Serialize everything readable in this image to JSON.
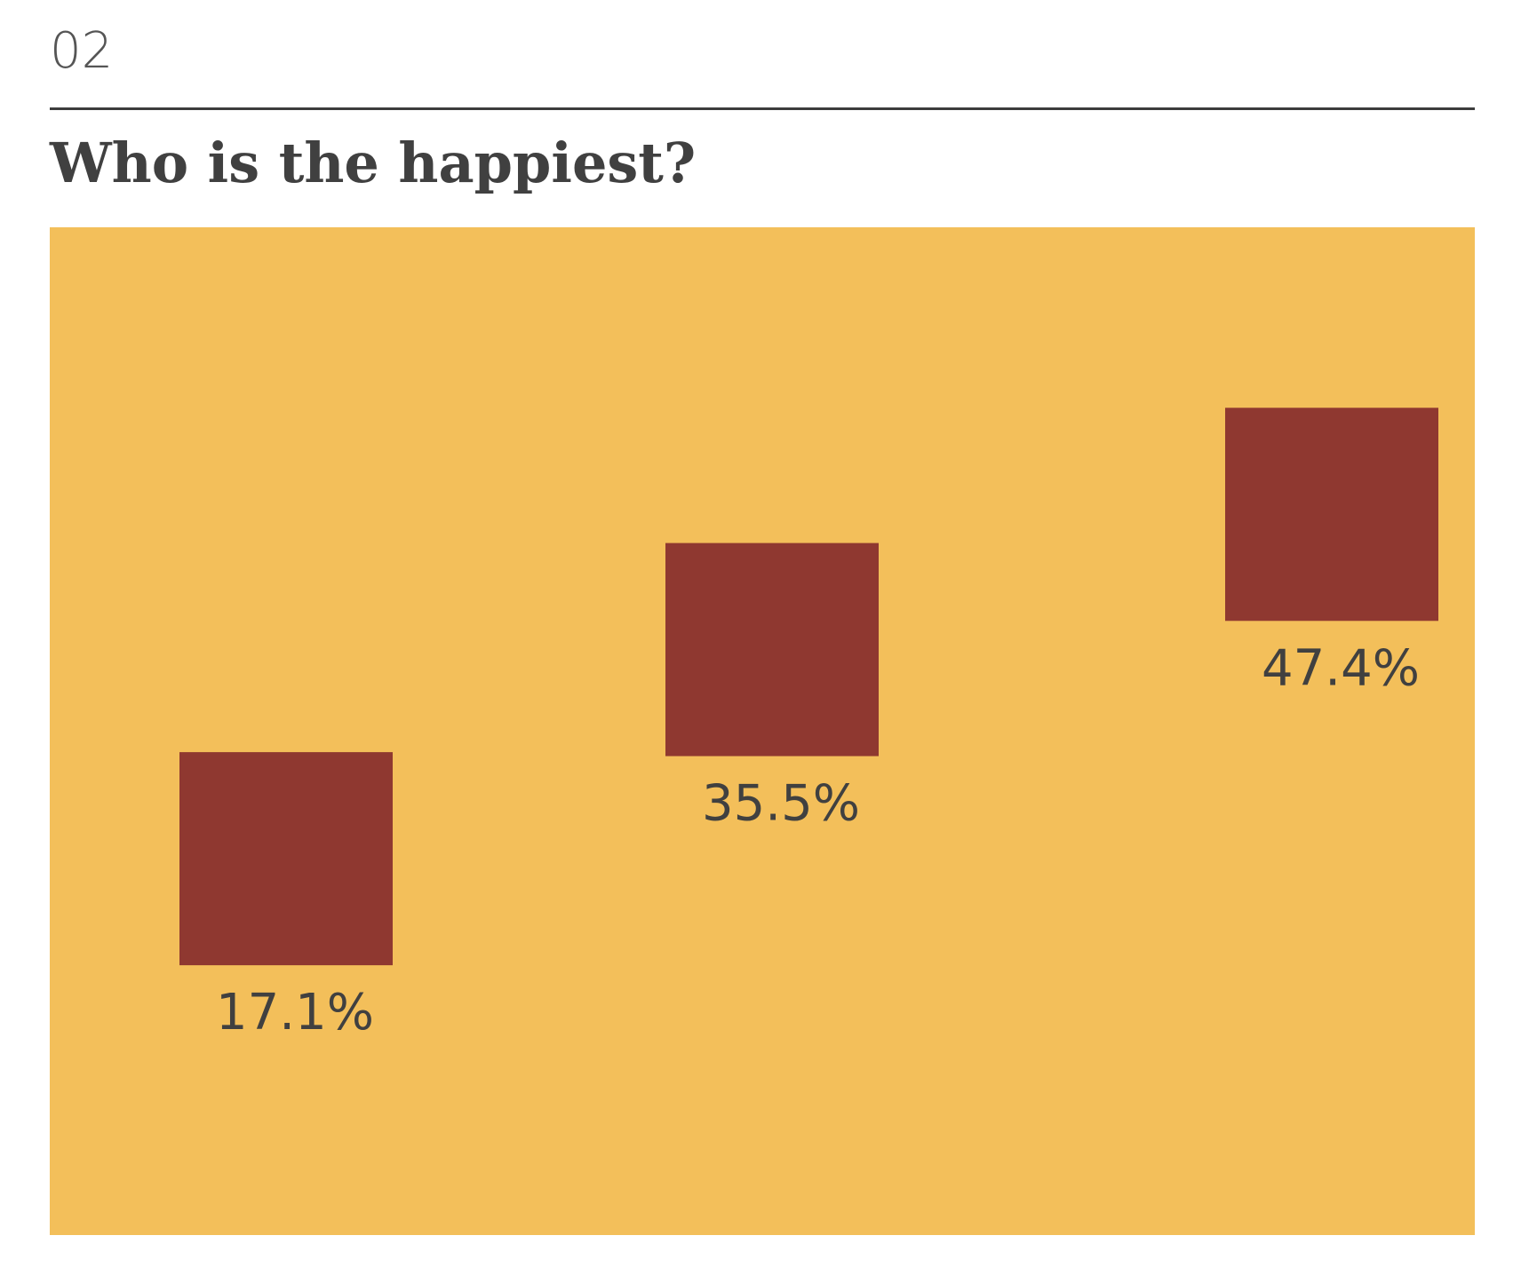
{
  "header": {
    "section_number": "02",
    "title": "Who is the happiest?"
  },
  "colors": {
    "background": "#f3bf5a",
    "marks": "#8f3830",
    "text": "#404040"
  },
  "chart_data": {
    "type": "scatter",
    "title": "Who is the happiest?",
    "xlabel": "",
    "ylabel": "",
    "grid": false,
    "legend": "none",
    "points": [
      {
        "value": 17.1,
        "label": "17.1%"
      },
      {
        "value": 35.5,
        "label": "35.5%"
      },
      {
        "value": 47.4,
        "label": "47.4%"
      }
    ]
  }
}
